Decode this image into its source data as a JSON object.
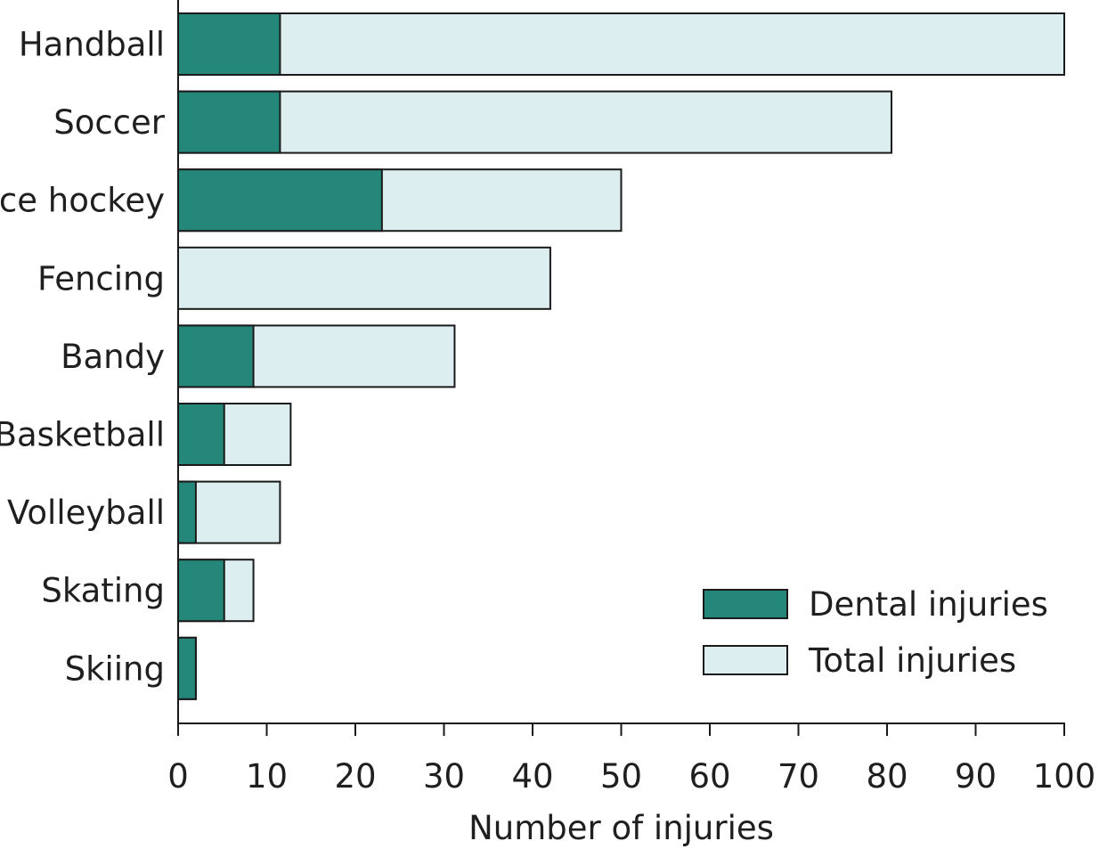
{
  "chart_data": {
    "type": "bar",
    "orientation": "horizontal",
    "stacked": "overlay",
    "categories": [
      "Handball",
      "Soccer",
      "Ice hockey",
      "Fencing",
      "Bandy",
      "Basketball",
      "Volleyball",
      "Skating",
      "Skiing"
    ],
    "series": [
      {
        "name": "Dental injuries",
        "values": [
          11.5,
          11.5,
          23,
          0,
          8.5,
          5.2,
          2,
          5.2,
          2
        ],
        "color": "#25877a"
      },
      {
        "name": "Total injuries",
        "values": [
          100,
          80.5,
          50,
          42,
          31.2,
          12.7,
          11.5,
          8.5,
          2
        ],
        "color": "#ddeef1"
      }
    ],
    "xlabel": "Number of injuries",
    "ylabel": "",
    "xlim": [
      0,
      100
    ],
    "xticks": [
      "0",
      "10",
      "20",
      "30",
      "40",
      "50",
      "60",
      "70",
      "80",
      "90",
      "100"
    ],
    "grid": false,
    "legend": "bottom-right"
  }
}
